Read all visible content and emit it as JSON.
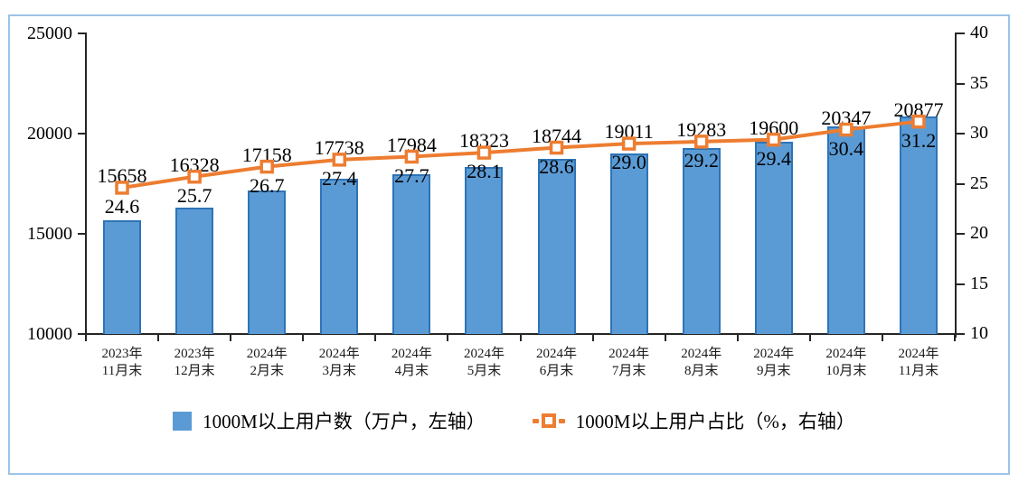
{
  "frame": {
    "border_color": "#9DC3E6",
    "background": "#FFFFFF",
    "axis_color": "#262626",
    "label_color": "#000000"
  },
  "chart_data": {
    "type": "bar+line",
    "title": "",
    "categories": [
      "2023年\n11月末",
      "2023年\n12月末",
      "2024年\n2月末",
      "2024年\n3月末",
      "2024年\n4月末",
      "2024年\n5月末",
      "2024年\n6月末",
      "2024年\n7月末",
      "2024年\n8月末",
      "2024年\n9月末",
      "2024年\n10月末",
      "2024年\n11月末"
    ],
    "series": [
      {
        "name": "1000M以上用户数（万户，左轴）",
        "type": "bar",
        "axis": "left",
        "color": "#5B9BD5",
        "border_color": "#2E74B6",
        "values": [
          15658,
          16328,
          17158,
          17738,
          17984,
          18323,
          18744,
          19011,
          19283,
          19600,
          20347,
          20877
        ]
      },
      {
        "name": "1000M以上用户占比（%，右轴）",
        "type": "line",
        "axis": "right",
        "color": "#ED7D31",
        "marker": "square-white-center",
        "values": [
          24.6,
          25.7,
          26.7,
          27.4,
          27.7,
          28.1,
          28.6,
          29.0,
          29.2,
          29.4,
          30.4,
          31.2
        ]
      }
    ],
    "left_axis": {
      "min": 10000,
      "max": 25000,
      "tick_step": 5000,
      "ticks": [
        10000,
        15000,
        20000,
        25000
      ]
    },
    "right_axis": {
      "min": 10,
      "max": 40,
      "tick_step": 5,
      "ticks": [
        10,
        15,
        20,
        25,
        30,
        35,
        40
      ]
    },
    "grid": false,
    "legend_position": "bottom"
  }
}
